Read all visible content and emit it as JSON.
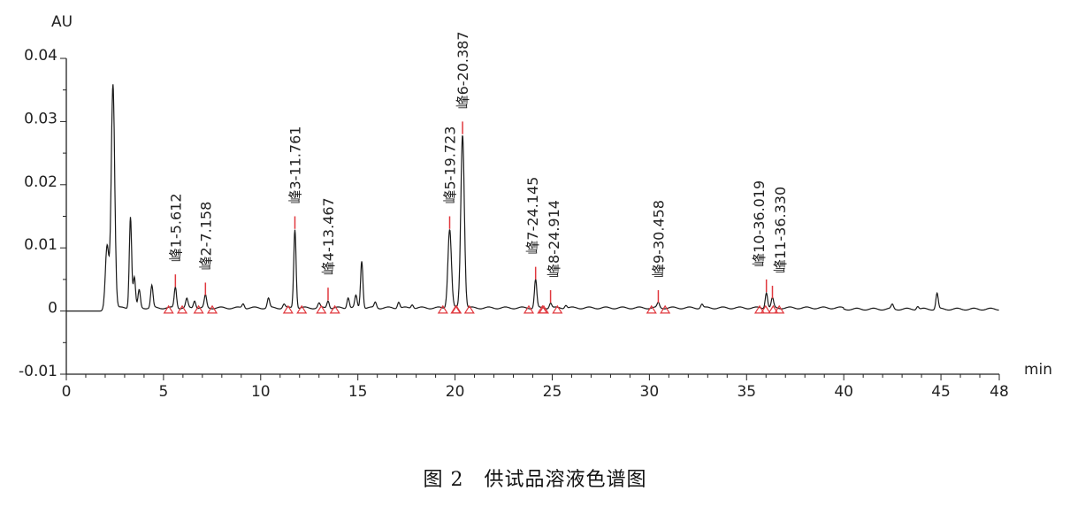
{
  "caption": "图 2　供试品溶液色谱图",
  "chart_data": {
    "type": "line",
    "title": "",
    "xlabel": "min",
    "ylabel": "AU",
    "xlim": [
      0,
      48
    ],
    "ylim": [
      -0.01,
      0.04
    ],
    "x_ticks": [
      "0",
      "5",
      "10",
      "15",
      "20",
      "25",
      "30",
      "35",
      "40",
      "45",
      "48"
    ],
    "x_tick_values": [
      0,
      5,
      10,
      15,
      20,
      25,
      30,
      35,
      40,
      45,
      48
    ],
    "y_ticks": [
      "-0.01",
      "0",
      "0.01",
      "0.02",
      "0.03",
      "0.04"
    ],
    "y_tick_values": [
      -0.01,
      0,
      0.01,
      0.02,
      0.03,
      0.04
    ],
    "grid": false,
    "line_color": "#1a1a1a",
    "marker_color": "#e0383e",
    "labeled_peaks": [
      {
        "label": "峰1-5.612",
        "rt": 5.612,
        "height": 0.0033
      },
      {
        "label": "峰2-7.158",
        "rt": 7.158,
        "height": 0.002
      },
      {
        "label": "峰3-11.761",
        "rt": 11.761,
        "height": 0.0125
      },
      {
        "label": "峰4-13.467",
        "rt": 13.467,
        "height": 0.0012
      },
      {
        "label": "峰5-19.723",
        "rt": 19.723,
        "height": 0.0125
      },
      {
        "label": "峰6-20.387",
        "rt": 20.387,
        "height": 0.0275
      },
      {
        "label": "峰7-24.145",
        "rt": 24.145,
        "height": 0.0045
      },
      {
        "label": "峰8-24.914",
        "rt": 24.914,
        "height": 0.0008
      },
      {
        "label": "峰9-30.458",
        "rt": 30.458,
        "height": 0.0008
      },
      {
        "label": "峰10-36.019",
        "rt": 36.019,
        "height": 0.0025
      },
      {
        "label": "峰11-36.330",
        "rt": 36.33,
        "height": 0.0015
      }
    ],
    "other_peaks": [
      {
        "rt": 2.1,
        "height": 0.01
      },
      {
        "rt": 2.4,
        "height": 0.0355
      },
      {
        "rt": 3.3,
        "height": 0.0145
      },
      {
        "rt": 3.5,
        "height": 0.0048
      },
      {
        "rt": 3.75,
        "height": 0.0028
      },
      {
        "rt": 4.4,
        "height": 0.0035
      },
      {
        "rt": 6.2,
        "height": 0.0014
      },
      {
        "rt": 6.6,
        "height": 0.0012
      },
      {
        "rt": 9.1,
        "height": 0.0007
      },
      {
        "rt": 10.4,
        "height": 0.0015
      },
      {
        "rt": 11.2,
        "height": 0.0006
      },
      {
        "rt": 13.0,
        "height": 0.0007
      },
      {
        "rt": 14.5,
        "height": 0.0017
      },
      {
        "rt": 14.9,
        "height": 0.0019
      },
      {
        "rt": 15.2,
        "height": 0.0075
      },
      {
        "rt": 15.9,
        "height": 0.0009
      },
      {
        "rt": 17.1,
        "height": 0.001
      },
      {
        "rt": 17.8,
        "height": 0.0006
      },
      {
        "rt": 25.7,
        "height": 0.0005
      },
      {
        "rt": 32.7,
        "height": 0.0006
      },
      {
        "rt": 42.5,
        "height": 0.0007
      },
      {
        "rt": 43.8,
        "height": 0.0005
      },
      {
        "rt": 44.8,
        "height": 0.0025
      }
    ]
  }
}
